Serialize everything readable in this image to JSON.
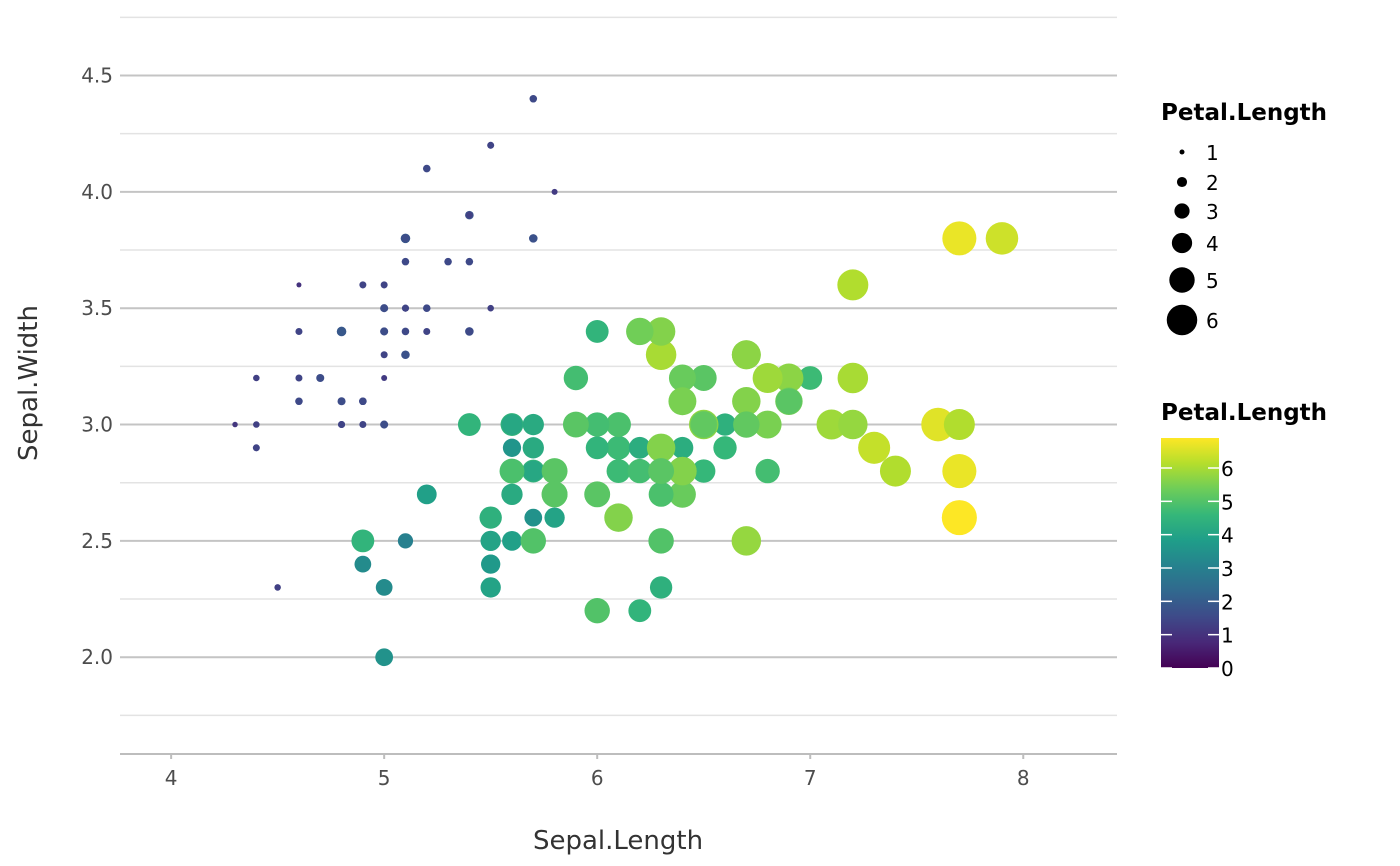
{
  "chart_data": {
    "type": "scatter",
    "xlabel": "Sepal.Length",
    "ylabel": "Sepal.Width",
    "xlim": [
      3.76,
      8.44
    ],
    "ylim": [
      1.64,
      4.76
    ],
    "x_ticks": [
      4,
      5,
      6,
      7,
      8
    ],
    "x_tick_labels": [
      "4",
      "5",
      "6",
      "7",
      "8"
    ],
    "y_ticks": [
      2.0,
      2.5,
      3.0,
      3.5,
      4.0,
      4.5
    ],
    "y_tick_labels": [
      "2.0",
      "2.5",
      "3.0",
      "3.5",
      "4.0",
      "4.5"
    ],
    "grid": true,
    "legend_placement": "right",
    "size_legend": {
      "title": "Petal.Length",
      "breaks": [
        1,
        2,
        3,
        4,
        5,
        6
      ],
      "labels": [
        "1",
        "2",
        "3",
        "4",
        "5",
        "6"
      ]
    },
    "color_legend": {
      "title": "Petal.Length",
      "breaks": [
        0,
        1,
        2,
        3,
        4,
        5,
        6
      ],
      "labels": [
        "0",
        "1",
        "2",
        "3",
        "4",
        "5",
        "6"
      ],
      "range": [
        0,
        6.9
      ],
      "palette": [
        "#440154",
        "#482878",
        "#3E4A89",
        "#31688E",
        "#26828E",
        "#1F9E89",
        "#35B779",
        "#6DCD59",
        "#B4DE2C",
        "#FDE725"
      ]
    },
    "x": [
      5.1,
      4.9,
      4.7,
      4.6,
      5.0,
      5.4,
      4.6,
      5.0,
      4.4,
      4.9,
      5.4,
      4.8,
      4.8,
      4.3,
      5.8,
      5.7,
      5.4,
      5.1,
      5.7,
      5.1,
      5.4,
      5.1,
      4.6,
      5.1,
      4.8,
      5.0,
      5.0,
      5.2,
      5.2,
      4.7,
      4.8,
      5.4,
      5.2,
      5.5,
      4.9,
      5.0,
      5.5,
      4.9,
      4.4,
      5.1,
      5.0,
      4.5,
      4.4,
      5.0,
      5.1,
      4.8,
      5.1,
      4.6,
      5.3,
      5.0,
      7.0,
      6.4,
      6.9,
      5.5,
      6.5,
      5.7,
      6.3,
      4.9,
      6.6,
      5.2,
      5.0,
      5.9,
      6.0,
      6.1,
      5.6,
      6.7,
      5.6,
      5.8,
      6.2,
      5.6,
      5.9,
      6.1,
      6.3,
      6.1,
      6.4,
      6.6,
      6.8,
      6.7,
      6.0,
      5.7,
      5.5,
      5.5,
      5.8,
      6.0,
      5.4,
      6.0,
      6.7,
      6.3,
      5.6,
      5.5,
      5.5,
      6.1,
      5.8,
      5.0,
      5.6,
      5.7,
      5.7,
      6.2,
      5.1,
      5.7,
      6.3,
      5.8,
      7.1,
      6.3,
      6.5,
      7.6,
      4.9,
      7.3,
      6.7,
      7.2,
      6.5,
      6.4,
      6.8,
      5.7,
      5.8,
      6.4,
      6.5,
      7.7,
      7.7,
      6.0,
      6.9,
      5.6,
      7.7,
      6.3,
      6.7,
      7.2,
      6.2,
      6.1,
      6.4,
      7.2,
      7.4,
      7.9,
      6.4,
      6.3,
      6.1,
      7.7,
      6.3,
      6.4,
      6.0,
      6.9,
      6.7,
      6.9,
      5.8,
      6.8,
      6.7,
      6.7,
      6.3,
      6.5,
      6.2,
      5.9
    ],
    "y": [
      3.5,
      3.0,
      3.2,
      3.1,
      3.6,
      3.9,
      3.4,
      3.4,
      2.9,
      3.1,
      3.7,
      3.4,
      3.0,
      3.0,
      4.0,
      4.4,
      3.9,
      3.5,
      3.8,
      3.8,
      3.4,
      3.7,
      3.6,
      3.3,
      3.4,
      3.0,
      3.4,
      3.5,
      3.4,
      3.2,
      3.1,
      3.4,
      4.1,
      4.2,
      3.1,
      3.2,
      3.5,
      3.6,
      3.0,
      3.4,
      3.5,
      2.3,
      3.2,
      3.5,
      3.8,
      3.0,
      3.8,
      3.2,
      3.7,
      3.3,
      3.2,
      3.2,
      3.1,
      2.3,
      2.8,
      2.8,
      3.3,
      2.4,
      2.9,
      2.7,
      2.0,
      3.0,
      2.2,
      2.9,
      2.9,
      3.1,
      3.0,
      2.7,
      2.2,
      2.5,
      3.2,
      2.8,
      2.5,
      2.8,
      2.9,
      3.0,
      2.8,
      3.0,
      2.9,
      2.6,
      2.4,
      2.4,
      2.7,
      2.7,
      3.0,
      3.4,
      3.1,
      2.3,
      3.0,
      2.5,
      2.6,
      3.0,
      2.6,
      2.3,
      2.7,
      3.0,
      2.9,
      2.9,
      2.5,
      2.8,
      3.3,
      2.7,
      3.0,
      2.9,
      3.0,
      3.0,
      2.5,
      2.9,
      2.5,
      3.6,
      3.2,
      2.7,
      3.0,
      2.5,
      2.8,
      3.2,
      3.0,
      3.8,
      2.6,
      2.2,
      3.2,
      2.8,
      2.8,
      2.7,
      3.3,
      3.2,
      2.8,
      3.0,
      2.8,
      3.0,
      2.8,
      3.8,
      2.8,
      2.8,
      2.6,
      3.0,
      3.4,
      3.1,
      3.0,
      3.1,
      3.1,
      3.1,
      2.7,
      3.2,
      3.3,
      3.0,
      2.5,
      3.0,
      3.4,
      3.0
    ],
    "petal_length": [
      1.4,
      1.4,
      1.3,
      1.5,
      1.4,
      1.7,
      1.4,
      1.5,
      1.4,
      1.5,
      1.5,
      1.6,
      1.4,
      1.1,
      1.2,
      1.5,
      1.3,
      1.4,
      1.7,
      1.5,
      1.7,
      1.5,
      1.0,
      1.7,
      1.9,
      1.6,
      1.6,
      1.5,
      1.4,
      1.6,
      1.6,
      1.5,
      1.5,
      1.4,
      1.5,
      1.2,
      1.3,
      1.4,
      1.3,
      1.5,
      1.3,
      1.3,
      1.3,
      1.6,
      1.9,
      1.4,
      1.6,
      1.4,
      1.5,
      1.4,
      4.7,
      4.5,
      4.9,
      4.0,
      4.6,
      4.5,
      4.7,
      3.3,
      4.6,
      3.9,
      3.5,
      4.2,
      4.0,
      4.7,
      3.6,
      4.4,
      4.5,
      4.1,
      4.5,
      3.9,
      4.8,
      4.0,
      4.9,
      4.7,
      4.3,
      4.4,
      4.8,
      5.0,
      4.5,
      3.5,
      3.8,
      3.7,
      3.9,
      5.1,
      4.5,
      4.5,
      4.7,
      4.4,
      4.1,
      4.0,
      4.4,
      4.6,
      4.0,
      3.3,
      4.2,
      4.2,
      4.2,
      4.3,
      3.0,
      4.1,
      6.0,
      5.1,
      5.9,
      5.6,
      5.8,
      6.6,
      4.5,
      6.3,
      5.8,
      6.1,
      5.1,
      5.3,
      5.5,
      5.0,
      5.1,
      5.3,
      5.5,
      6.7,
      6.9,
      5.0,
      5.7,
      4.9,
      6.7,
      4.9,
      5.7,
      6.0,
      4.8,
      4.9,
      5.6,
      5.8,
      6.1,
      6.4,
      5.6,
      5.1,
      5.6,
      6.1,
      5.6,
      5.5,
      4.8,
      5.4,
      5.6,
      5.1,
      5.1,
      5.9,
      5.7,
      5.2,
      5.0,
      5.2,
      5.4,
      5.1
    ]
  }
}
